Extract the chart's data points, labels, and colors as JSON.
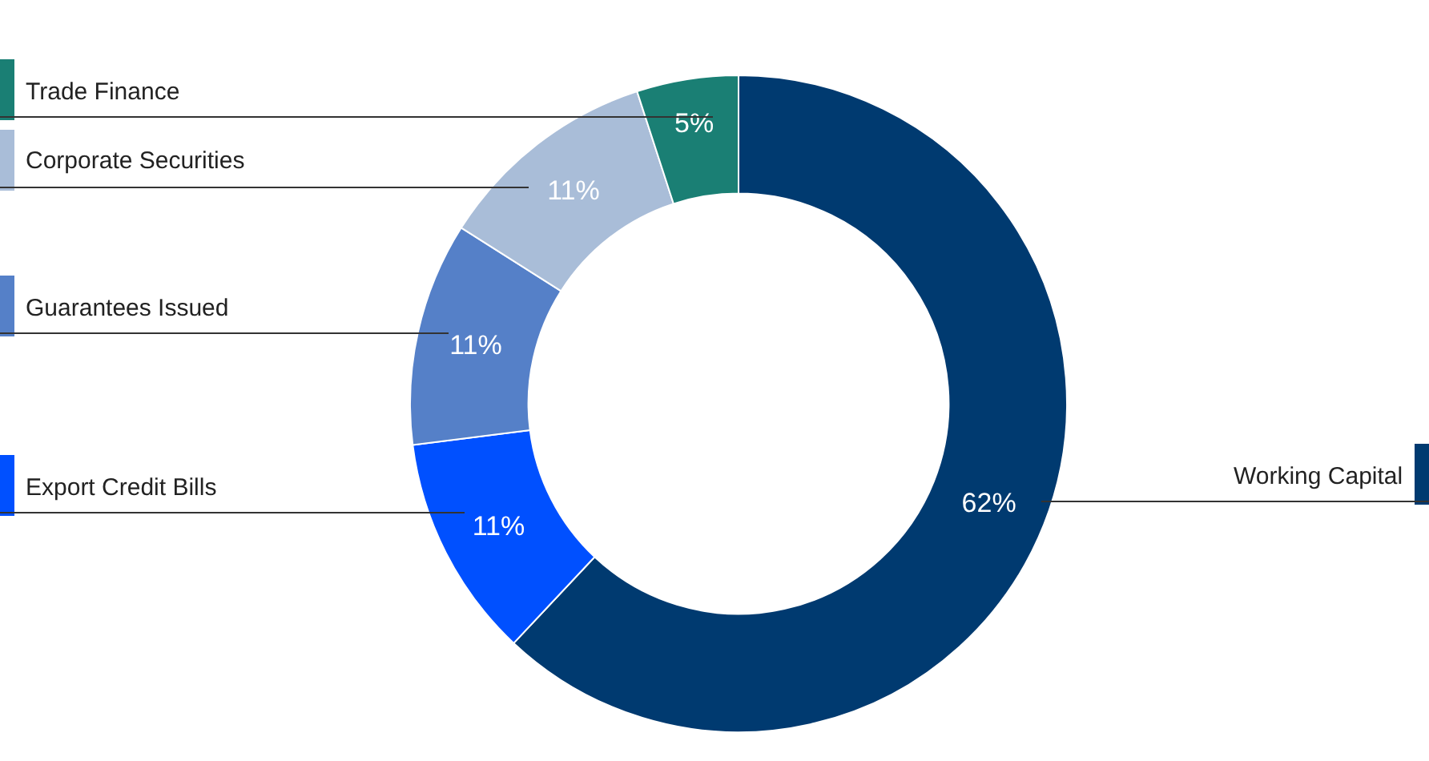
{
  "chart_data": {
    "type": "donut",
    "categories": [
      "Working Capital",
      "Export Credit Bills",
      "Guarantees Issued",
      "Corporate Securities",
      "Trade Finance"
    ],
    "values": [
      62,
      11,
      11,
      11,
      5
    ],
    "colors": [
      "#003a70",
      "#0050ff",
      "#5580c8",
      "#a9bdd8",
      "#1a7f74"
    ],
    "value_labels": [
      "62%",
      "11%",
      "11%",
      "11%",
      "5%"
    ],
    "legend": false
  }
}
